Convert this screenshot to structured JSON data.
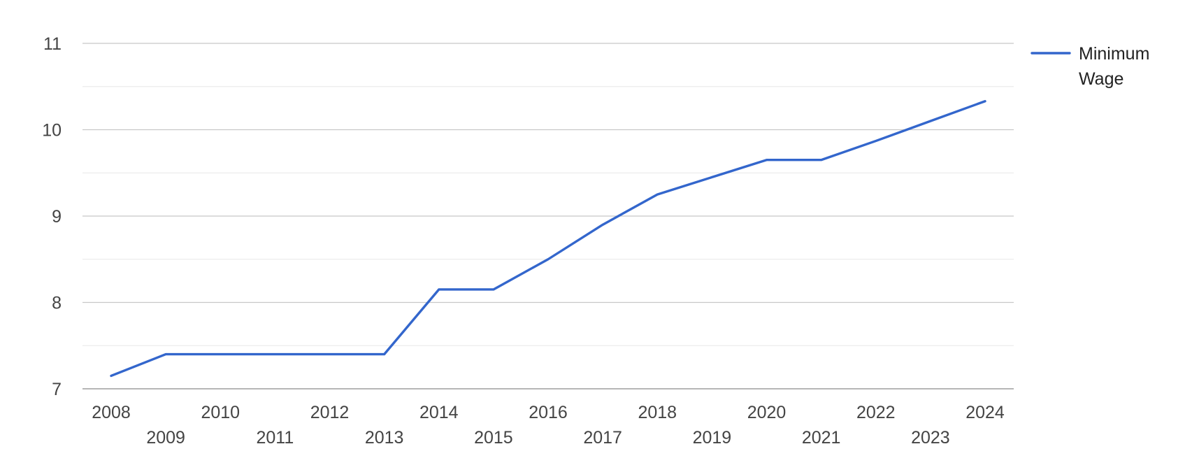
{
  "chart_data": {
    "type": "line",
    "title": "",
    "xlabel": "",
    "ylabel": "",
    "categories": [
      "2008",
      "2009",
      "2010",
      "2011",
      "2012",
      "2013",
      "2014",
      "2015",
      "2016",
      "2017",
      "2018",
      "2019",
      "2020",
      "2021",
      "2022",
      "2023",
      "2024"
    ],
    "series": [
      {
        "name": "Minimum Wage",
        "color": "#3366cc",
        "values": [
          7.15,
          7.4,
          7.4,
          7.4,
          7.4,
          7.4,
          8.15,
          8.15,
          8.5,
          8.9,
          9.25,
          9.45,
          9.65,
          9.65,
          9.87,
          10.1,
          10.33
        ]
      }
    ],
    "ylim": [
      7,
      11
    ],
    "yticks": [
      7,
      8,
      9,
      10,
      11
    ],
    "grid": true,
    "legend_position": "right",
    "legend": {
      "label_lines": [
        "Minimum",
        "Wage"
      ]
    }
  }
}
